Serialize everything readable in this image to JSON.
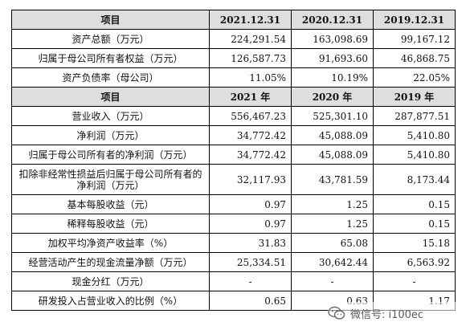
{
  "table": {
    "header1": [
      "项目",
      "2021.12.31",
      "2020.12.31",
      "2019.12.31"
    ],
    "section1": [
      {
        "label": "资产总额（万元）",
        "values": [
          "224,291.54",
          "163,098.69",
          "99,167.12"
        ]
      },
      {
        "label": "归属于母公司所有者权益（万元）",
        "values": [
          "126,587.73",
          "91,693.60",
          "46,868.75"
        ]
      },
      {
        "label": "资产负债率（母公司）",
        "values": [
          "11.05%",
          "10.19%",
          "22.05%"
        ]
      }
    ],
    "header2": [
      "项目",
      "2021 年",
      "2020 年",
      "2019 年"
    ],
    "section2": [
      {
        "label": "营业收入（万元）",
        "values": [
          "556,467.23",
          "525,301.10",
          "287,877.51"
        ]
      },
      {
        "label": "净利润（万元）",
        "values": [
          "34,772.42",
          "45,088.09",
          "5,410.80"
        ]
      },
      {
        "label": "归属于母公司所有者的净利润（万元）",
        "values": [
          "34,772.42",
          "45,088.09",
          "5,410.80"
        ]
      },
      {
        "label": "扣除非经常性损益后归属于母公司所有者的净利润（万元）",
        "values": [
          "32,117.93",
          "43,781.59",
          "8,173.44"
        ]
      },
      {
        "label": "基本每股收益（元）",
        "values": [
          "0.97",
          "1.25",
          "0.15"
        ]
      },
      {
        "label": "稀释每股收益（元）",
        "values": [
          "0.97",
          "1.25",
          "0.15"
        ]
      },
      {
        "label": "加权平均净资产收益率（%）",
        "values": [
          "31.83",
          "65.08",
          "15.18"
        ]
      },
      {
        "label": "经营活动产生的现金流量净额（万元）",
        "values": [
          "25,334.51",
          "30,642.44",
          "6,563.92"
        ]
      },
      {
        "label": "现金分红（万元）",
        "values": [
          "-",
          "-",
          "-"
        ]
      },
      {
        "label": "研发投入占营业收入的比例（%）",
        "values": [
          "0.65",
          "0.63",
          "1.17"
        ]
      }
    ]
  },
  "watermark": {
    "text": "微信号: i100ec",
    "icon": "wechat-icon"
  }
}
